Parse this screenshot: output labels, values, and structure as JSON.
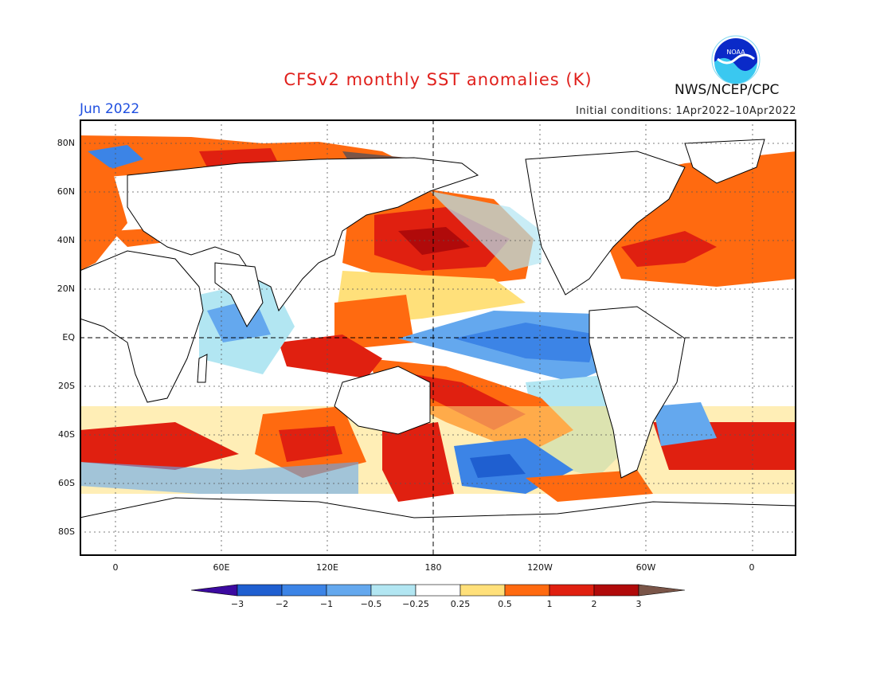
{
  "header": {
    "title": "CFSv2 monthly SST anomalies (K)",
    "month": "Jun 2022",
    "initial_conditions": "Initial conditions: 1Apr2022–10Apr2022",
    "agency": "NWS/NCEP/CPC",
    "logo_text": "NOAA"
  },
  "axes": {
    "lat_labels": [
      "80N",
      "60N",
      "40N",
      "20N",
      "EQ",
      "20S",
      "40S",
      "60S",
      "80S"
    ],
    "lon_labels": [
      "0",
      "60E",
      "120E",
      "180",
      "120W",
      "60W",
      "0"
    ]
  },
  "colorbar": {
    "labels": [
      "−3",
      "−2",
      "−1",
      "−0.5",
      "−0.25",
      "0.25",
      "0.5",
      "1",
      "2",
      "3"
    ],
    "colors": [
      "#3c0aa0",
      "#1f5fd0",
      "#3c84e6",
      "#64a8ee",
      "#b2e6f2",
      "#ffffff",
      "#ffe07a",
      "#ff6a10",
      "#e02010",
      "#b00a0a",
      "#7a5548"
    ]
  },
  "map": {
    "palette": {
      "ocean_neutral": "#ffffff",
      "strong_cold": "#1f5fd0",
      "cold": "#3c84e6",
      "mild_cold": "#64a8ee",
      "slight_cold": "#b2e6f2",
      "slight_warm": "#ffe07a",
      "warm": "#ff6a10",
      "hot": "#e02010",
      "very_hot": "#b00a0a",
      "extreme": "#7a5548",
      "land": "#ffffff",
      "coast": "#000000"
    }
  }
}
